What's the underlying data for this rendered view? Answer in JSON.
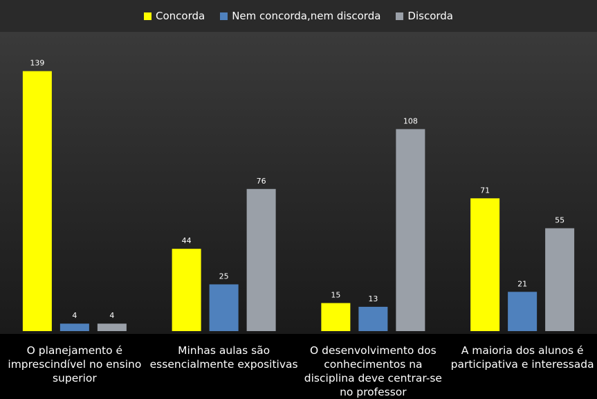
{
  "chart_data": {
    "type": "bar",
    "categories": [
      "O planejamento é imprescindível no ensino superior",
      "Minhas aulas são essencialmente expositivas",
      "O desenvolvimento dos conhecimentos na disciplina deve centrar-se no professor",
      "A maioria dos alunos é participativa e interessada"
    ],
    "series": [
      {
        "name": "Concorda",
        "values": [
          139,
          44,
          15,
          71
        ],
        "color": "#ffff00"
      },
      {
        "name": "Nem concorda,nem discorda",
        "values": [
          4,
          25,
          13,
          21
        ],
        "color": "#4f81bd"
      },
      {
        "name": "Discorda",
        "values": [
          4,
          76,
          108,
          55
        ],
        "color": "#9aa0a8"
      }
    ],
    "ylim": [
      0,
      150
    ],
    "grid": false,
    "legend_position": "top",
    "data_labels": true
  }
}
